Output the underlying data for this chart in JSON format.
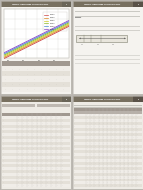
{
  "title": "CONTROL CABLES GUIDE TO LIGHTING CIRCUIT",
  "outer_bg": "#b8b4ae",
  "page_bg": "#f5f3ef",
  "page_bg_bottom": "#eeebe5",
  "header_color": "#787060",
  "header_text_color": "#ffffff",
  "tab_color_left": "#6a6558",
  "tab_color_right": "#5a5248",
  "text_color": "#404040",
  "light_gray": "#c0bdb6",
  "mid_gray": "#a0a098",
  "table_header_bg": "#a09890",
  "table_row_bg1": "#f0ede8",
  "table_row_bg2": "#e4e0d8",
  "table_cell_text": "#505050",
  "chart_bg": "#ffffff",
  "chart_border": "#c0bdb6",
  "chart_line_colors": [
    "#cc4444",
    "#dd8822",
    "#cccc22",
    "#88bb22",
    "#4488cc",
    "#8844cc"
  ],
  "diagram_bg": "#e8e5dc",
  "diagram_border": "#808070"
}
